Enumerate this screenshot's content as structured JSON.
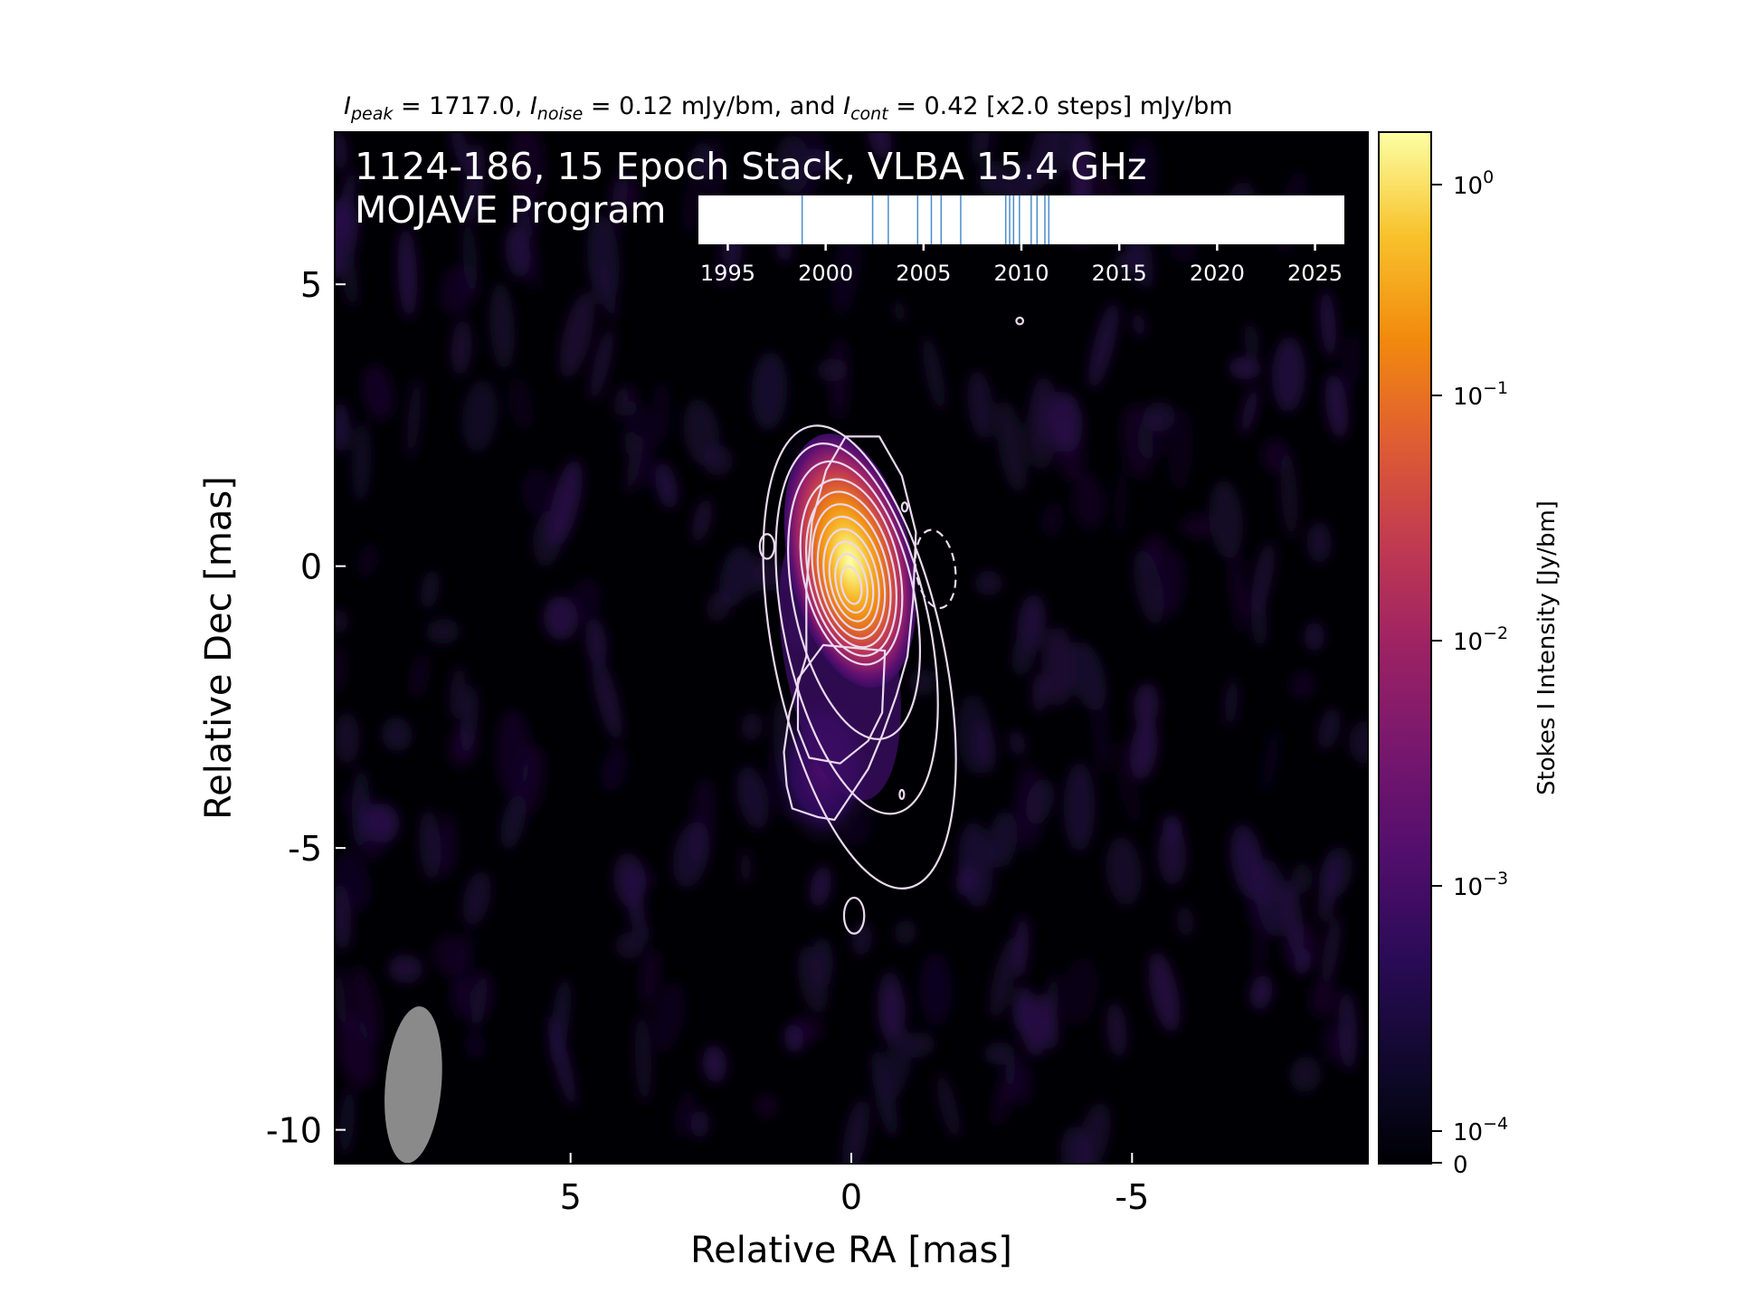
{
  "chart_data": {
    "type": "heatmap",
    "header": {
      "peak_sym": "I",
      "peak_sub": "peak",
      "peak_val": " = 1717.0, ",
      "noise_sym": "I",
      "noise_sub": "noise",
      "noise_val": " = 0.12 mJy/bm, and ",
      "cont_sym": "I",
      "cont_sub": "cont",
      "cont_val": " = 0.42 [x2.0 steps] mJy/bm"
    },
    "source_label": "1124-186, 15 Epoch Stack, VLBA 15.4 GHz",
    "program_label": "MOJAVE Program",
    "xlabel": "Relative RA [mas]",
    "ylabel": "Relative Dec [mas]",
    "xlim": [
      9.2,
      -9.2
    ],
    "ylim": [
      -10.6,
      7.7
    ],
    "xticks": [
      5,
      0,
      -5
    ],
    "xtick_labels": [
      "5",
      "0",
      "-5"
    ],
    "yticks": [
      5,
      0,
      -5,
      -10
    ],
    "ytick_labels": [
      "5",
      "0",
      "-5",
      "-10"
    ],
    "colorbar": {
      "label": "Stokes I Intensity [Jy/bm]",
      "scale": "log",
      "ticks": [
        {
          "base": "10",
          "exp": "0"
        },
        {
          "base": "10",
          "exp": "−1"
        },
        {
          "base": "10",
          "exp": "−2"
        },
        {
          "base": "10",
          "exp": "−3"
        },
        {
          "base": "10",
          "exp": "−4"
        }
      ],
      "zero_label": "0",
      "colormap": "inferno"
    },
    "epoch_axis": {
      "xlim": [
        1993.5,
        2026.5
      ],
      "ticks": [
        "1995",
        "2000",
        "2005",
        "2010",
        "2015",
        "2020",
        "2025"
      ],
      "epochs": [
        1998.8,
        2002.4,
        2003.2,
        2004.7,
        2005.4,
        2005.9,
        2006.9,
        2009.2,
        2009.4,
        2009.6,
        2009.9,
        2010.5,
        2010.8,
        2011.2,
        2011.4
      ]
    },
    "source_model": {
      "core": {
        "ra": 0.0,
        "dec": 0.0,
        "peak_jy": 1.717,
        "sigma_ra": 0.3,
        "sigma_dec": 0.75,
        "tilt_deg": -12
      },
      "jet": {
        "ra": 0.5,
        "dec": -3.6,
        "flux_rel": 0.0009
      },
      "beam": {
        "ra": 7.8,
        "dec": -9.2,
        "major_mas": 2.8,
        "minor_mas": 1.0,
        "pa_deg": 5
      }
    },
    "colors": {
      "contour": "#ead9f0",
      "beam": "#8a8a8a",
      "epoch_line": "#4a8ecb",
      "background": "#000004"
    }
  }
}
